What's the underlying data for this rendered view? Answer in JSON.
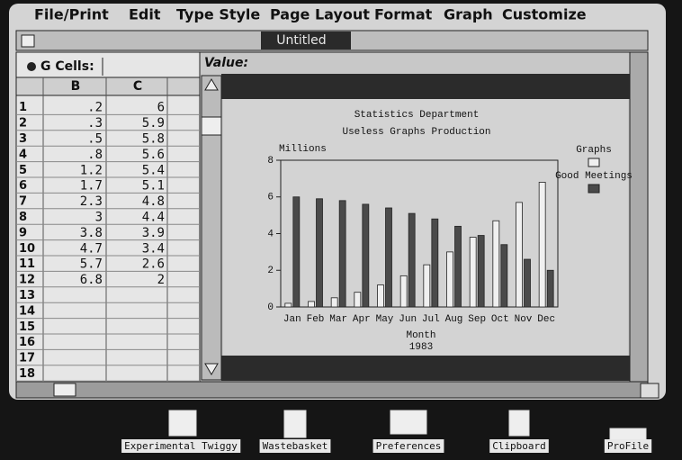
{
  "menu": [
    "File/Print",
    "Edit",
    "Type Style",
    "Page Layout",
    "Format",
    "Graph",
    "Customize"
  ],
  "window": {
    "title": "Untitled",
    "cells_label": "G Cells:",
    "value_label": "Value:"
  },
  "spreadsheet": {
    "columns": [
      "B",
      "C"
    ],
    "rows": [
      {
        "label": "1",
        "cells": [
          ".2",
          "6"
        ]
      },
      {
        "label": "2",
        "cells": [
          ".3",
          "5.9"
        ]
      },
      {
        "label": "3",
        "cells": [
          ".5",
          "5.8"
        ]
      },
      {
        "label": "4",
        "cells": [
          ".8",
          "5.6"
        ]
      },
      {
        "label": "5",
        "cells": [
          "1.2",
          "5.4"
        ]
      },
      {
        "label": "6",
        "cells": [
          "1.7",
          "5.1"
        ]
      },
      {
        "label": "7",
        "cells": [
          "2.3",
          "4.8"
        ]
      },
      {
        "label": "8",
        "cells": [
          "3",
          "4.4"
        ]
      },
      {
        "label": "9",
        "cells": [
          "3.8",
          "3.9"
        ]
      },
      {
        "label": "10",
        "cells": [
          "4.7",
          "3.4"
        ]
      },
      {
        "label": "11",
        "cells": [
          "5.7",
          "2.6"
        ]
      },
      {
        "label": "12",
        "cells": [
          "6.8",
          "2"
        ]
      },
      {
        "label": "13"
      },
      {
        "label": "14"
      },
      {
        "label": "15"
      },
      {
        "label": "16"
      },
      {
        "label": "17"
      },
      {
        "label": "18"
      }
    ]
  },
  "chart_data": {
    "type": "bar",
    "title": "Statistics Department",
    "subtitle": "Useless Graphs Production",
    "y_label": "Millions",
    "x_label": "Month",
    "x_sublabel": "1983",
    "categories": [
      "Jan",
      "Feb",
      "Mar",
      "Apr",
      "May",
      "Jun",
      "Jul",
      "Aug",
      "Sep",
      "Oct",
      "Nov",
      "Dec"
    ],
    "series": [
      {
        "name": "Graphs",
        "color": "#f0f0f0",
        "values": [
          0.2,
          0.3,
          0.5,
          0.8,
          1.2,
          1.7,
          2.3,
          3,
          3.8,
          4.7,
          5.7,
          6.8
        ]
      },
      {
        "name": "Good Meetings",
        "color": "#4a4a4a",
        "values": [
          6,
          5.9,
          5.8,
          5.6,
          5.4,
          5.1,
          4.8,
          4.4,
          3.9,
          3.4,
          2.6,
          2
        ]
      }
    ],
    "ylim": [
      0,
      8
    ],
    "yticks": [
      0,
      2,
      4,
      6,
      8
    ]
  },
  "desktop": [
    "Experimental Twiggy",
    "Wastebasket",
    "Preferences",
    "Clipboard",
    "ProFile"
  ]
}
